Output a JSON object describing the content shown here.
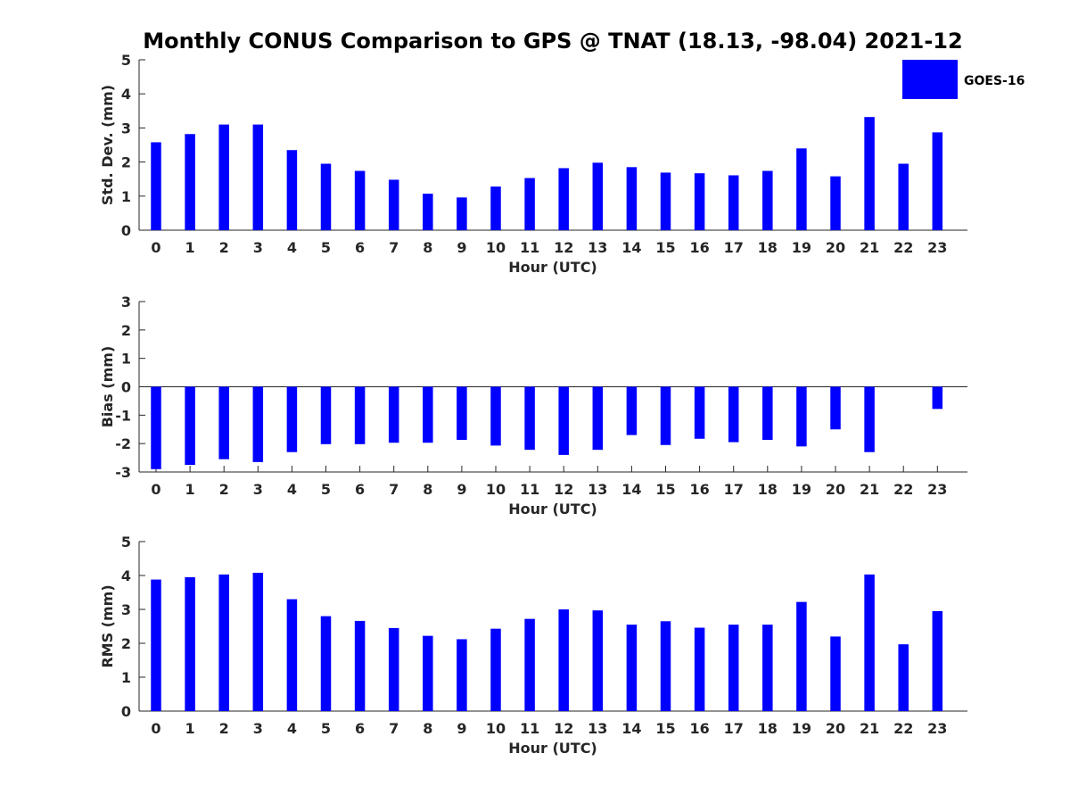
{
  "chart_data": [
    {
      "type": "bar",
      "title": "Monthly CONUS Comparison to GPS @ TNAT (18.13, -98.04) 2021-12",
      "xlabel": "Hour (UTC)",
      "ylabel": "Std. Dev. (mm)",
      "ylim": [
        0,
        5
      ],
      "yticks": [
        0,
        1,
        2,
        3,
        4,
        5
      ],
      "categories": [
        "0",
        "1",
        "2",
        "3",
        "4",
        "5",
        "6",
        "7",
        "8",
        "9",
        "10",
        "11",
        "12",
        "13",
        "14",
        "15",
        "16",
        "17",
        "18",
        "19",
        "20",
        "21",
        "22",
        "23"
      ],
      "series": [
        {
          "name": "GOES-16",
          "color": "#0000ff",
          "values": [
            2.58,
            2.82,
            3.1,
            3.1,
            2.35,
            1.95,
            1.74,
            1.48,
            1.07,
            0.96,
            1.28,
            1.53,
            1.82,
            1.98,
            1.85,
            1.69,
            1.67,
            1.61,
            1.74,
            2.4,
            1.58,
            3.32,
            1.95,
            2.87
          ]
        }
      ],
      "legend": {
        "position": "top-right"
      }
    },
    {
      "type": "bar",
      "xlabel": "Hour (UTC)",
      "ylabel": "Bias (mm)",
      "ylim": [
        -3,
        3
      ],
      "yticks": [
        -3,
        -2,
        -1,
        0,
        1,
        2,
        3
      ],
      "categories": [
        "0",
        "1",
        "2",
        "3",
        "4",
        "5",
        "6",
        "7",
        "8",
        "9",
        "10",
        "11",
        "12",
        "13",
        "14",
        "15",
        "16",
        "17",
        "18",
        "19",
        "20",
        "21",
        "22",
        "23"
      ],
      "series": [
        {
          "name": "GOES-16",
          "color": "#0000ff",
          "values": [
            -2.9,
            -2.75,
            -2.55,
            -2.65,
            -2.3,
            -2.02,
            -2.02,
            -1.97,
            -1.97,
            -1.87,
            -2.07,
            -2.22,
            -2.4,
            -2.22,
            -1.7,
            -2.05,
            -1.83,
            -1.95,
            -1.87,
            -2.1,
            -1.5,
            -2.3,
            null,
            -0.78
          ]
        }
      ]
    },
    {
      "type": "bar",
      "xlabel": "Hour (UTC)",
      "ylabel": "RMS (mm)",
      "ylim": [
        0,
        5
      ],
      "yticks": [
        0,
        1,
        2,
        3,
        4,
        5
      ],
      "categories": [
        "0",
        "1",
        "2",
        "3",
        "4",
        "5",
        "6",
        "7",
        "8",
        "9",
        "10",
        "11",
        "12",
        "13",
        "14",
        "15",
        "16",
        "17",
        "18",
        "19",
        "20",
        "21",
        "22",
        "23"
      ],
      "series": [
        {
          "name": "GOES-16",
          "color": "#0000ff",
          "values": [
            3.88,
            3.95,
            4.03,
            4.08,
            3.3,
            2.8,
            2.66,
            2.45,
            2.22,
            2.12,
            2.43,
            2.72,
            3.0,
            2.97,
            2.55,
            2.65,
            2.46,
            2.55,
            2.55,
            3.22,
            2.2,
            4.03,
            1.97,
            2.95
          ]
        }
      ]
    }
  ]
}
